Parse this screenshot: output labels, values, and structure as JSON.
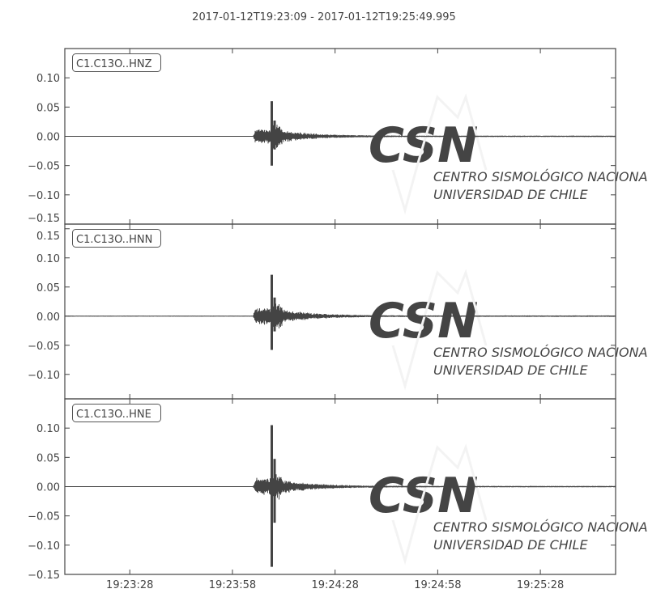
{
  "chart_data": {
    "type": "line",
    "title": "2017-01-12T19:23:09  -  2017-01-12T19:25:49.995",
    "x_axis": {
      "start": "19:23:09",
      "end": "19:25:49.995",
      "tick_labels": [
        "19:23:28",
        "19:23:58",
        "19:24:28",
        "19:24:58",
        "19:25:28"
      ],
      "tick_seconds_from_start": [
        19,
        49,
        79,
        109,
        139
      ],
      "duration_s": 160.995
    },
    "colors": {
      "trace": "#444444",
      "axes": "#444444",
      "watermark": "#f4f4f4"
    },
    "grid": false,
    "series": [
      {
        "name": "C1.C13O..HNZ",
        "ylim": [
          -0.15,
          0.15
        ],
        "ytick_labels": [
          "0.10",
          "0.05",
          "0.00",
          "−0.05",
          "−0.10",
          "−0.15"
        ],
        "ytick_values": [
          0.1,
          0.05,
          0.0,
          -0.05,
          -0.1,
          -0.15
        ],
        "p_arrival_s": 55,
        "peak_time_s": 60.5,
        "peak_max": 0.06,
        "peak_min": -0.05,
        "coda_amp": 0.012
      },
      {
        "name": "C1.C13O..HNN",
        "ylim": [
          -0.142,
          0.158
        ],
        "ytick_labels": [
          "0.15",
          "0.10",
          "0.05",
          "0.00",
          "−0.05",
          "−0.10"
        ],
        "ytick_values": [
          0.15,
          0.1,
          0.05,
          0.0,
          -0.05,
          -0.1
        ],
        "p_arrival_s": 55,
        "peak_time_s": 60.5,
        "peak_max": 0.071,
        "peak_min": -0.058,
        "coda_amp": 0.014
      },
      {
        "name": "C1.C13O..HNE",
        "ylim": [
          -0.15,
          0.15
        ],
        "ytick_labels": [
          "0.10",
          "0.05",
          "0.00",
          "−0.05",
          "−0.10",
          "−0.15"
        ],
        "ytick_values": [
          0.1,
          0.05,
          0.0,
          -0.05,
          -0.1,
          -0.15
        ],
        "p_arrival_s": 55,
        "peak_time_s": 60.5,
        "peak_max": 0.105,
        "peak_min": -0.137,
        "coda_amp": 0.014
      }
    ]
  },
  "watermark": {
    "logo": "CSN",
    "line1": "CENTRO SISMOLÓGICO NACIONAL",
    "line2": "UNIVERSIDAD DE CHILE"
  }
}
